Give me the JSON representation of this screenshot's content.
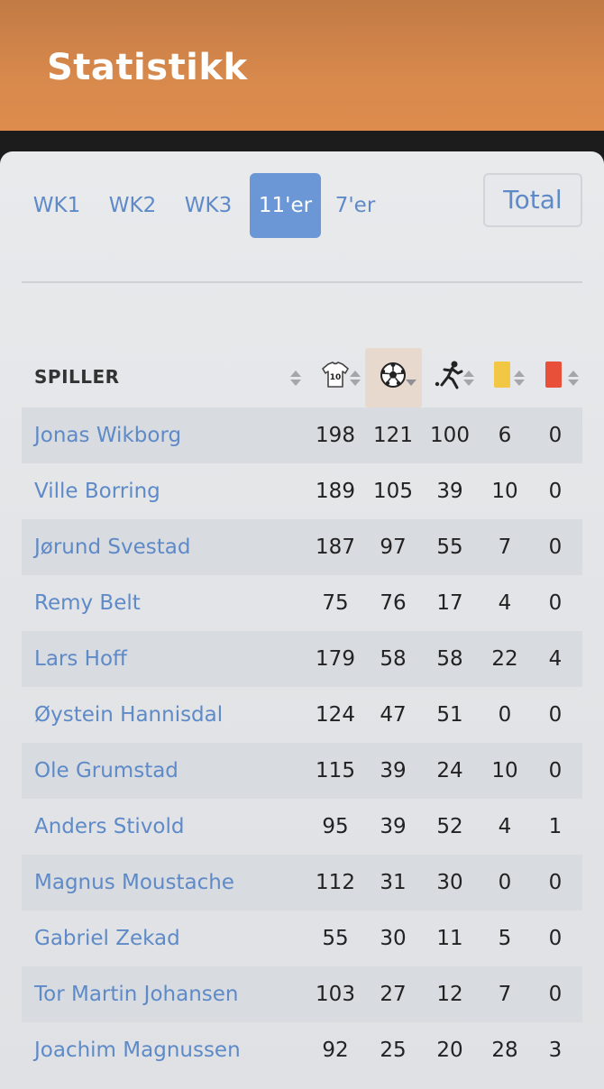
{
  "header": {
    "title": "Statistikk"
  },
  "tabs": [
    {
      "label": "WK1",
      "active": false
    },
    {
      "label": "WK2",
      "active": false
    },
    {
      "label": "WK3",
      "active": false
    },
    {
      "label": "11'er",
      "active": true
    },
    {
      "label": "7'er",
      "active": false
    }
  ],
  "total_button": {
    "label": "Total"
  },
  "table": {
    "player_header": "SPILLER",
    "column_icons": [
      "jersey-10-icon",
      "soccer-ball-icon",
      "player-kick-icon",
      "yellow-card-icon",
      "red-card-icon"
    ],
    "jersey_number": "10",
    "sorted_column": "soccer-ball-icon",
    "colors": {
      "accent": "#6b97d6",
      "link": "#5e8ac8",
      "yellow_card": "#f2c744",
      "red_card": "#e8503a",
      "header": "#d8894c"
    },
    "rows": [
      {
        "name": "Jonas Wikborg",
        "c1": "198",
        "c2": "121",
        "c3": "100",
        "c4": "6",
        "c5": "0"
      },
      {
        "name": "Ville Borring",
        "c1": "189",
        "c2": "105",
        "c3": "39",
        "c4": "10",
        "c5": "0"
      },
      {
        "name": "Jørund Svestad",
        "c1": "187",
        "c2": "97",
        "c3": "55",
        "c4": "7",
        "c5": "0"
      },
      {
        "name": "Remy Belt",
        "c1": "75",
        "c2": "76",
        "c3": "17",
        "c4": "4",
        "c5": "0"
      },
      {
        "name": "Lars Hoff",
        "c1": "179",
        "c2": "58",
        "c3": "58",
        "c4": "22",
        "c5": "4"
      },
      {
        "name": "Øystein Hannisdal",
        "c1": "124",
        "c2": "47",
        "c3": "51",
        "c4": "0",
        "c5": "0"
      },
      {
        "name": "Ole Grumstad",
        "c1": "115",
        "c2": "39",
        "c3": "24",
        "c4": "10",
        "c5": "0"
      },
      {
        "name": "Anders Stivold",
        "c1": "95",
        "c2": "39",
        "c3": "52",
        "c4": "4",
        "c5": "1"
      },
      {
        "name": "Magnus Moustache",
        "c1": "112",
        "c2": "31",
        "c3": "30",
        "c4": "0",
        "c5": "0"
      },
      {
        "name": "Gabriel Zekad",
        "c1": "55",
        "c2": "30",
        "c3": "11",
        "c4": "5",
        "c5": "0"
      },
      {
        "name": "Tor Martin Johansen",
        "c1": "103",
        "c2": "27",
        "c3": "12",
        "c4": "7",
        "c5": "0"
      },
      {
        "name": "Joachim Magnussen",
        "c1": "92",
        "c2": "25",
        "c3": "20",
        "c4": "28",
        "c5": "3"
      }
    ]
  }
}
